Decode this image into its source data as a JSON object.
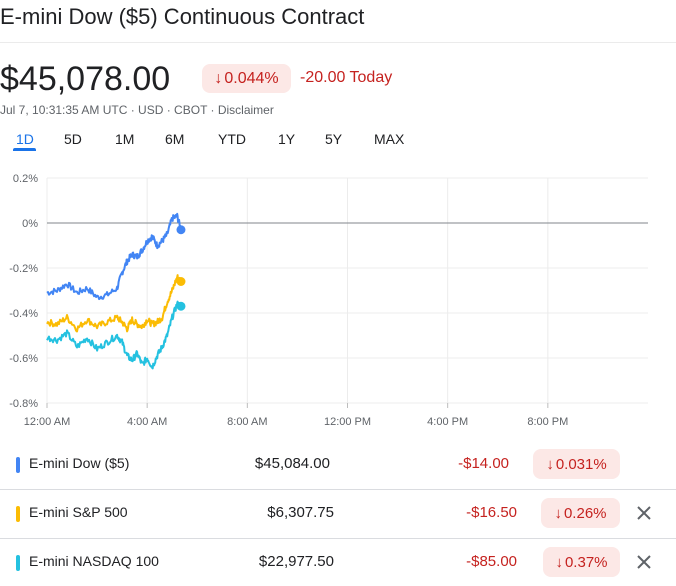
{
  "header": {
    "title": "E-mini Dow ($5) Continuous Contract",
    "price": "$45,078.00",
    "change_percent": "0.044%",
    "change_arrow": "↓",
    "change_today": "-20.00 Today",
    "meta": "Jul 7, 10:31:35 AM UTC · USD · CBOT · Disclaimer"
  },
  "ranges": [
    "1D",
    "5D",
    "1M",
    "6M",
    "YTD",
    "1Y",
    "5Y",
    "MAX"
  ],
  "active_range": "1D",
  "colors": {
    "dow": "#4285f4",
    "sp500": "#fbbc04",
    "nasdaq": "#24c1e0",
    "negative": "#c5221f",
    "negative_bg": "#fce8e6",
    "accent": "#1a73e8"
  },
  "chart_data": {
    "type": "line",
    "xlabel": "",
    "ylabel": "",
    "x_unit": "hours since 12:00 AM",
    "xlim": [
      0,
      24
    ],
    "ylim": [
      -0.8,
      0.2
    ],
    "x_ticks": [
      0,
      4,
      8,
      12,
      16,
      20
    ],
    "x_tick_labels": [
      "12:00 AM",
      "4:00 AM",
      "8:00 AM",
      "12:00 PM",
      "4:00 PM",
      "8:00 PM"
    ],
    "y_ticks": [
      0.2,
      0,
      -0.2,
      -0.4,
      -0.6,
      -0.8
    ],
    "y_tick_labels": [
      "0.2%",
      "0%",
      "-0.2%",
      "-0.4%",
      "-0.6%",
      "-0.8%"
    ],
    "baseline": 0,
    "series": [
      {
        "name": "E-mini Dow ($5)",
        "color": "#4285f4",
        "x": [
          0,
          0.4,
          0.8,
          1.2,
          1.6,
          2.0,
          2.4,
          2.8,
          3.0,
          3.2,
          3.4,
          3.6,
          3.8,
          4.0,
          4.2,
          4.4,
          4.6,
          4.8,
          5.0,
          5.2,
          5.35
        ],
        "values": [
          -0.31,
          -0.3,
          -0.27,
          -0.31,
          -0.29,
          -0.33,
          -0.32,
          -0.29,
          -0.22,
          -0.17,
          -0.14,
          -0.15,
          -0.12,
          -0.08,
          -0.06,
          -0.1,
          -0.08,
          -0.05,
          0.02,
          0.03,
          -0.03
        ]
      },
      {
        "name": "E-mini S&P 500",
        "color": "#fbbc04",
        "x": [
          0,
          0.4,
          0.8,
          1.2,
          1.6,
          2.0,
          2.4,
          2.8,
          3.0,
          3.2,
          3.4,
          3.6,
          3.8,
          4.0,
          4.2,
          4.4,
          4.6,
          4.8,
          5.0,
          5.2,
          5.35
        ],
        "values": [
          -0.44,
          -0.45,
          -0.42,
          -0.47,
          -0.43,
          -0.46,
          -0.44,
          -0.42,
          -0.44,
          -0.47,
          -0.43,
          -0.45,
          -0.46,
          -0.43,
          -0.45,
          -0.44,
          -0.42,
          -0.35,
          -0.3,
          -0.24,
          -0.26
        ]
      },
      {
        "name": "E-mini NASDAQ 100",
        "color": "#24c1e0",
        "x": [
          0,
          0.4,
          0.8,
          1.2,
          1.6,
          2.0,
          2.4,
          2.8,
          3.0,
          3.2,
          3.4,
          3.6,
          3.8,
          4.0,
          4.2,
          4.4,
          4.6,
          4.8,
          5.0,
          5.2,
          5.35
        ],
        "values": [
          -0.51,
          -0.52,
          -0.49,
          -0.55,
          -0.51,
          -0.56,
          -0.53,
          -0.5,
          -0.53,
          -0.59,
          -0.61,
          -0.58,
          -0.63,
          -0.6,
          -0.64,
          -0.59,
          -0.55,
          -0.5,
          -0.42,
          -0.36,
          -0.37
        ]
      }
    ]
  },
  "table": {
    "rows": [
      {
        "key": "dow",
        "name": "E-mini Dow ($5)",
        "value": "$45,084.00",
        "change": "-$14.00",
        "change_percent": "0.031%",
        "arrow": "↓",
        "removable": false
      },
      {
        "key": "sp500",
        "name": "E-mini S&P 500",
        "value": "$6,307.75",
        "change": "-$16.50",
        "change_percent": "0.26%",
        "arrow": "↓",
        "removable": true
      },
      {
        "key": "nasdaq",
        "name": "E-mini NASDAQ 100",
        "value": "$22,977.50",
        "change": "-$85.00",
        "change_percent": "0.37%",
        "arrow": "↓",
        "removable": true
      }
    ]
  }
}
